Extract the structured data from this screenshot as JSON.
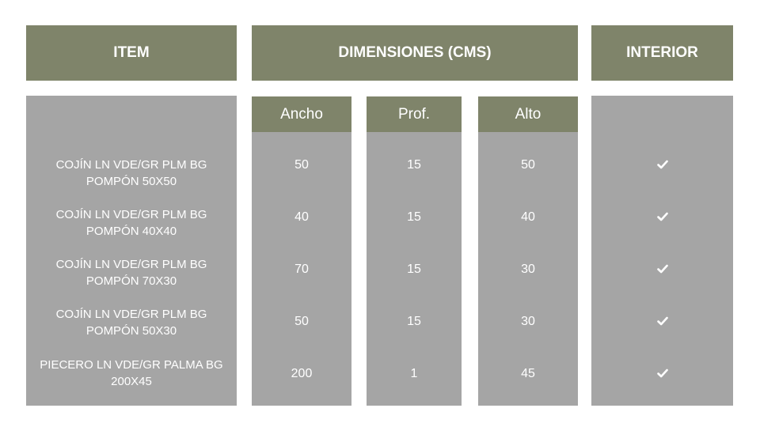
{
  "headers": {
    "item": "ITEM",
    "dimensions": "DIMENSIONES (CMS)",
    "interior": "INTERIOR"
  },
  "subheaders": {
    "ancho": "Ancho",
    "prof": "Prof.",
    "alto": "Alto"
  },
  "rows": [
    {
      "item": "COJÍN LN VDE/GR PLM BG POMPÓN 50X50",
      "ancho": "50",
      "prof": "15",
      "alto": "50",
      "interior": true
    },
    {
      "item": "COJÍN LN VDE/GR PLM BG POMPÓN 40X40",
      "ancho": "40",
      "prof": "15",
      "alto": "40",
      "interior": true
    },
    {
      "item": "COJÍN LN VDE/GR PLM BG POMPÓN 70X30",
      "ancho": "70",
      "prof": "15",
      "alto": "30",
      "interior": true
    },
    {
      "item": "COJÍN LN VDE/GR PLM BG POMPÓN 50X30",
      "ancho": "50",
      "prof": "15",
      "alto": "30",
      "interior": true
    },
    {
      "item": "PIECERO LN VDE/GR PALMA BG 200X45",
      "ancho": "200",
      "prof": "1",
      "alto": "45",
      "interior": true
    }
  ],
  "icons": {
    "interior_mark": "check-icon"
  },
  "colors": {
    "header": "#7f846a",
    "body": "#a5a5a5",
    "text": "#ffffff"
  }
}
